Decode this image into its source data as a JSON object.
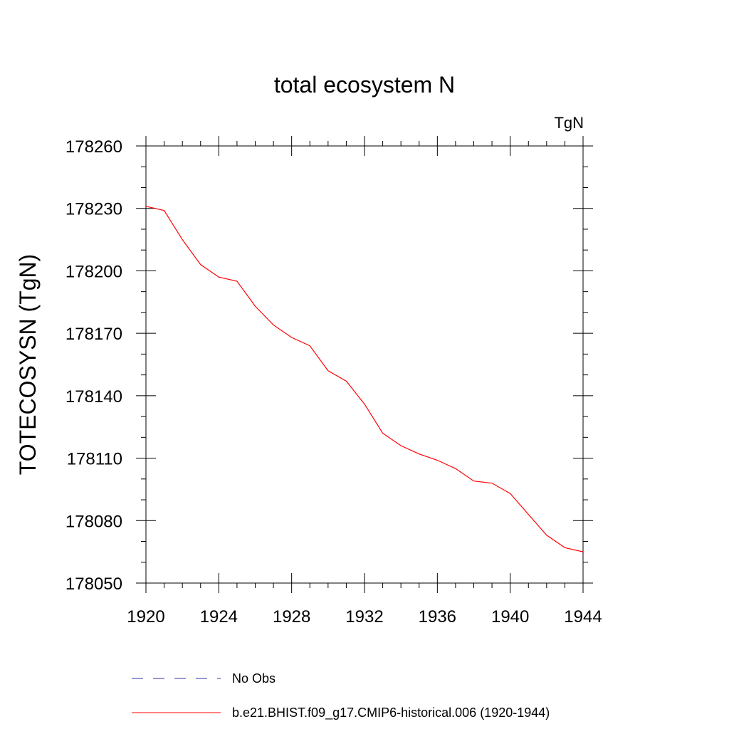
{
  "chart_data": {
    "type": "line",
    "title": "total ecosystem N",
    "units_label": "TgN",
    "xlabel": "",
    "ylabel": "TOTECOSYSN  (TgN)",
    "xlim": [
      1920,
      1944
    ],
    "ylim": [
      178050,
      178260
    ],
    "xticks": [
      1920,
      1924,
      1928,
      1932,
      1936,
      1940,
      1944
    ],
    "yticks": [
      178050,
      178080,
      178110,
      178140,
      178170,
      178200,
      178230,
      178260
    ],
    "grid": false,
    "legend_position": "bottom",
    "series": [
      {
        "name": "No Obs",
        "color": "#3333aa",
        "style": "dashed",
        "x": [],
        "y": []
      },
      {
        "name": "b.e21.BHIST.f09_g17.CMIP6-historical.006 (1920-1944)",
        "color": "#ff0000",
        "style": "solid",
        "x": [
          1920,
          1921,
          1922,
          1923,
          1924,
          1925,
          1926,
          1927,
          1928,
          1929,
          1930,
          1931,
          1932,
          1933,
          1934,
          1935,
          1936,
          1937,
          1938,
          1939,
          1940,
          1941,
          1942,
          1943,
          1944
        ],
        "y": [
          178231,
          178229,
          178215,
          178203,
          178197,
          178195,
          178183,
          178174,
          178168,
          178164,
          178152,
          178147,
          178136,
          178122,
          178116,
          178112,
          178109,
          178105,
          178099,
          178098,
          178093,
          178083,
          178073,
          178067,
          178065
        ]
      }
    ]
  }
}
